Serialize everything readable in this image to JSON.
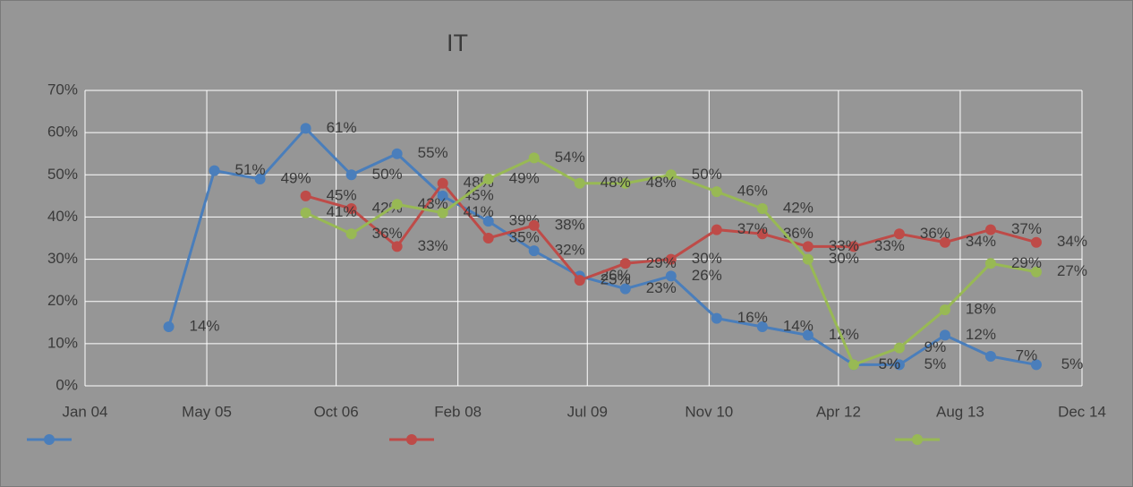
{
  "chart_data": {
    "type": "line",
    "title": "IT",
    "x": [
      "2004-12",
      "2005-06",
      "2005-12",
      "2006-06",
      "2006-12",
      "2007-06",
      "2007-12",
      "2008-06",
      "2008-12",
      "2009-06",
      "2009-12",
      "2010-06",
      "2010-12",
      "2011-06",
      "2011-12",
      "2012-06",
      "2012-12",
      "2013-06",
      "2013-12",
      "2014-06"
    ],
    "xlim": [
      "2004-01",
      "2014-12"
    ],
    "xticks": [
      {
        "value": "2004-01",
        "label": "Jan 04"
      },
      {
        "value": "2005-05",
        "label": "May 05"
      },
      {
        "value": "2006-10",
        "label": "Oct 06"
      },
      {
        "value": "2008-02",
        "label": "Feb 08"
      },
      {
        "value": "2009-07",
        "label": "Jul 09"
      },
      {
        "value": "2010-11",
        "label": "Nov 10"
      },
      {
        "value": "2012-04",
        "label": "Apr 12"
      },
      {
        "value": "2013-08",
        "label": "Aug 13"
      },
      {
        "value": "2014-12",
        "label": "Dec 14"
      }
    ],
    "ylim": [
      0,
      70
    ],
    "yticks": [
      {
        "value": 0,
        "label": "0%"
      },
      {
        "value": 10,
        "label": "10%"
      },
      {
        "value": 20,
        "label": "20%"
      },
      {
        "value": 30,
        "label": "30%"
      },
      {
        "value": 40,
        "label": "40%"
      },
      {
        "value": 50,
        "label": "50%"
      },
      {
        "value": 60,
        "label": "60%"
      },
      {
        "value": 70,
        "label": "70%"
      }
    ],
    "grid": true,
    "series": [
      {
        "color": "#4a7ebb",
        "values": [
          14,
          51,
          49,
          61,
          50,
          55,
          45,
          39,
          32,
          26,
          23,
          26,
          16,
          14,
          12,
          5,
          5,
          12,
          7,
          5
        ],
        "value_labels": [
          "14%",
          "51%",
          "49%",
          "61%",
          "50%",
          "55%",
          "45%",
          "39%",
          "32%",
          "26%",
          "23%",
          "26%",
          "16%",
          "14%",
          "12%",
          "5%",
          "5%",
          "12%",
          "7%",
          "5%"
        ]
      },
      {
        "color": "#be4b48",
        "values": [
          null,
          null,
          null,
          45,
          42,
          33,
          48,
          35,
          38,
          25,
          29,
          30,
          37,
          36,
          33,
          33,
          36,
          34,
          37,
          34
        ],
        "value_labels": [
          null,
          null,
          null,
          "45%",
          "42%",
          "33%",
          "48%",
          "35%",
          "38%",
          "25%",
          "29%",
          "30%",
          "37%",
          "36%",
          "33%",
          "33%",
          "36%",
          "34%",
          "37%",
          "34%"
        ]
      },
      {
        "color": "#98b954",
        "values": [
          null,
          null,
          null,
          41,
          36,
          43,
          41,
          49,
          54,
          48,
          48,
          50,
          46,
          42,
          30,
          5,
          9,
          18,
          29,
          27
        ],
        "value_labels": [
          null,
          null,
          null,
          "41%",
          "36%",
          "43%",
          "41%",
          "49%",
          "54%",
          "48%",
          "48%",
          "50%",
          "46%",
          "42%",
          "30%",
          "5%",
          "9%",
          "18%",
          "29%",
          "27%"
        ]
      }
    ]
  }
}
